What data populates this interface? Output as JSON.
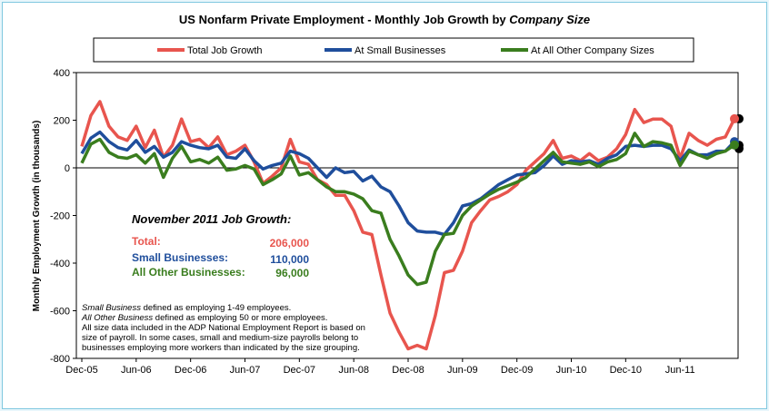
{
  "chart_data": {
    "type": "line",
    "title_main": "US Nonfarm Private Employment - Monthly Job Growth by ",
    "title_italic": "Company Size",
    "ylabel": "Monthly Employment Growth (in thousands)",
    "xlabel": "",
    "ylim": [
      -800,
      400
    ],
    "yticks": [
      400,
      200,
      0,
      -200,
      -400,
      -600,
      -800
    ],
    "ytick_labels": [
      "400",
      "200",
      "0",
      "-200",
      "-400",
      "-600",
      "-800"
    ],
    "x_tick_labels": [
      "Dec-05",
      "Jun-06",
      "Dec-06",
      "Jun-07",
      "Dec-07",
      "Jun-08",
      "Dec-08",
      "Jun-09",
      "Dec-09",
      "Jun-10",
      "Dec-10",
      "Jun-11"
    ],
    "x_tick_index": [
      0,
      6,
      12,
      18,
      24,
      30,
      36,
      42,
      48,
      54,
      60,
      66
    ],
    "x_start": "Dec-05",
    "x_end": "Nov-11",
    "grid": false,
    "legend_position": "top",
    "series": [
      {
        "name": "Total Job Growth",
        "color": "#e8554e",
        "values": [
          90,
          220,
          278,
          175,
          130,
          115,
          175,
          85,
          158,
          45,
          95,
          205,
          110,
          120,
          85,
          130,
          55,
          70,
          95,
          25,
          -65,
          -35,
          0,
          120,
          25,
          15,
          -50,
          -70,
          -115,
          -115,
          -180,
          -270,
          -280,
          -450,
          -610,
          -690,
          -760,
          -745,
          -760,
          -620,
          -440,
          -430,
          -350,
          -230,
          -180,
          -135,
          -120,
          -100,
          -70,
          -10,
          25,
          60,
          115,
          40,
          50,
          30,
          60,
          30,
          45,
          80,
          140,
          245,
          190,
          205,
          205,
          175,
          40,
          145,
          115,
          95,
          120,
          130,
          206
        ]
      },
      {
        "name": "At Small Businesses",
        "color": "#1f4e9c",
        "values": [
          60,
          125,
          150,
          110,
          85,
          75,
          115,
          65,
          90,
          45,
          65,
          110,
          95,
          85,
          80,
          95,
          45,
          40,
          80,
          30,
          -5,
          10,
          20,
          70,
          60,
          40,
          0,
          -40,
          0,
          -20,
          -15,
          -55,
          -35,
          -80,
          -100,
          -160,
          -230,
          -265,
          -270,
          -270,
          -280,
          -230,
          -160,
          -150,
          -130,
          -100,
          -70,
          -50,
          -30,
          -25,
          -20,
          10,
          50,
          15,
          30,
          25,
          30,
          15,
          40,
          55,
          90,
          95,
          90,
          95,
          95,
          80,
          30,
          75,
          55,
          55,
          70,
          70,
          110
        ]
      },
      {
        "name": "At All Other Company Sizes",
        "color": "#3a7d1e",
        "values": [
          20,
          100,
          120,
          65,
          45,
          40,
          55,
          20,
          60,
          -40,
          40,
          90,
          25,
          35,
          20,
          45,
          -10,
          -5,
          10,
          -5,
          -70,
          -50,
          -25,
          50,
          -30,
          -20,
          -50,
          -80,
          -100,
          -100,
          -110,
          -130,
          -180,
          -190,
          -300,
          -370,
          -450,
          -490,
          -480,
          -350,
          -280,
          -275,
          -200,
          -160,
          -135,
          -110,
          -90,
          -75,
          -60,
          -40,
          -5,
          30,
          65,
          25,
          20,
          15,
          25,
          5,
          25,
          35,
          60,
          145,
          90,
          110,
          105,
          95,
          10,
          70,
          55,
          40,
          60,
          70,
          96
        ]
      }
    ]
  },
  "callout": {
    "heading": "November 2011 Job Growth:",
    "rows": [
      {
        "label": "Total:",
        "value": "206,000",
        "color": "#e8554e"
      },
      {
        "label": "Small Businesses:",
        "value": "110,000",
        "color": "#1f4e9c"
      },
      {
        "label": "All Other Businesses:",
        "value": "96,000",
        "color": "#3a7d1e"
      }
    ]
  },
  "notes": {
    "line1_italic": "Small Business",
    "line1_rest": " defined as employing 1-49 employees.",
    "line2_italic": "All Other Business",
    "line2_rest": " defined as employing 50 or more employees.",
    "line3": "All size data included in the ADP National Employment Report is based on",
    "line4": "size of payroll.  In some cases, small and medium-size payrolls belong to",
    "line5": "businesses employing more workers than indicated by the size grouping."
  }
}
